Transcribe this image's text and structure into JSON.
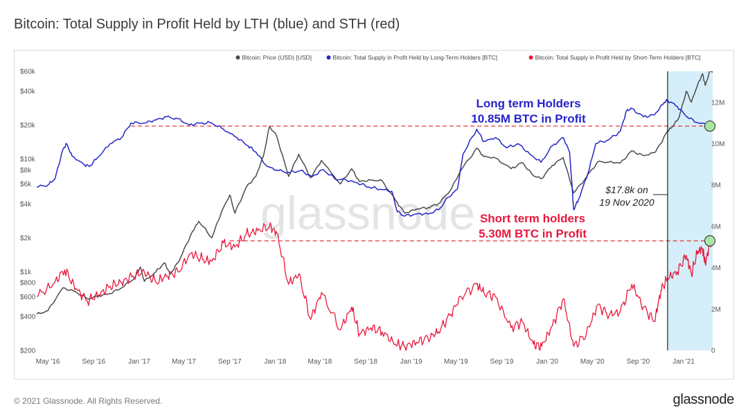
{
  "title": "Bitcoin: Total Supply in Profit Held by LTH (blue) and STH (red)",
  "footer": {
    "copyright": "© 2021 Glassnode. All Rights Reserved.",
    "brand": "glassnode"
  },
  "watermark": "glassnode",
  "colors": {
    "price": "#4a4a4a",
    "lth": "#2424c8",
    "sth": "#e8173c",
    "highlight": "#d6eef9",
    "refline": "#e02020"
  },
  "legend": [
    {
      "name": "Bitcoin: Price (USD) [USD]",
      "color": "#4a4a4a"
    },
    {
      "name": "Bitcoin: Total Supply in Profit Held by Long-Term Holders [BTC]",
      "color": "#2424c8"
    },
    {
      "name": "Bitcoin: Total Supply in Profit Held by Short-Term Holders [BTC]",
      "color": "#e8173c"
    }
  ],
  "annotations": {
    "lth_line1": "Long term Holders",
    "lth_line2": "10.85M BTC in Profit",
    "sth_line1": "Short term holders",
    "sth_line2": "5.30M BTC in Profit",
    "price_line1": "$17.8k on",
    "price_line2": "19 Nov 2020"
  },
  "chart_data": {
    "type": "line",
    "x_range": [
      "2016-04-01",
      "2021-03-20"
    ],
    "y_left": {
      "label": "",
      "scale": "log",
      "range": [
        200,
        60000
      ],
      "ticks": [
        {
          "label": "$200",
          "value": 200
        },
        {
          "label": "$400",
          "value": 400
        },
        {
          "label": "$600",
          "value": 600
        },
        {
          "label": "$800",
          "value": 800
        },
        {
          "label": "$1k",
          "value": 1000
        },
        {
          "label": "$2k",
          "value": 2000
        },
        {
          "label": "$4k",
          "value": 4000
        },
        {
          "label": "$6k",
          "value": 6000
        },
        {
          "label": "$8k",
          "value": 8000
        },
        {
          "label": "$10k",
          "value": 10000
        },
        {
          "label": "$20k",
          "value": 20000
        },
        {
          "label": "$40k",
          "value": 40000
        },
        {
          "label": "$60k",
          "value": 60000
        }
      ]
    },
    "y_right": {
      "label": "",
      "scale": "linear",
      "range": [
        0,
        13500000
      ],
      "ticks": [
        {
          "label": "0",
          "value": 0
        },
        {
          "label": "2M",
          "value": 2000000
        },
        {
          "label": "4M",
          "value": 4000000
        },
        {
          "label": "6M",
          "value": 6000000
        },
        {
          "label": "8M",
          "value": 8000000
        },
        {
          "label": "10M",
          "value": 10000000
        },
        {
          "label": "12M",
          "value": 12000000
        }
      ]
    },
    "x_ticks": [
      {
        "label": "May '16",
        "date": "2016-05-01"
      },
      {
        "label": "Sep '16",
        "date": "2016-09-01"
      },
      {
        "label": "Jan '17",
        "date": "2017-01-01"
      },
      {
        "label": "May '17",
        "date": "2017-05-01"
      },
      {
        "label": "Sep '17",
        "date": "2017-09-01"
      },
      {
        "label": "Jan '18",
        "date": "2018-01-01"
      },
      {
        "label": "May '18",
        "date": "2018-05-01"
      },
      {
        "label": "Sep '18",
        "date": "2018-09-01"
      },
      {
        "label": "Jan '19",
        "date": "2019-01-01"
      },
      {
        "label": "May '19",
        "date": "2019-05-01"
      },
      {
        "label": "Sep '19",
        "date": "2019-09-01"
      },
      {
        "label": "Jan '20",
        "date": "2020-01-01"
      },
      {
        "label": "May '20",
        "date": "2020-05-01"
      },
      {
        "label": "Sep '20",
        "date": "2020-09-01"
      },
      {
        "label": "Jan '21",
        "date": "2021-01-01"
      }
    ],
    "highlight_range": [
      "2020-11-19",
      "2021-03-20"
    ],
    "vertical_marker": {
      "date": "2020-11-19",
      "price": 17800
    },
    "reference_lines": [
      {
        "series": "lth",
        "value": 10850000
      },
      {
        "series": "sth",
        "value": 5300000
      }
    ],
    "series": [
      {
        "name": "Bitcoin: Price (USD) [USD]",
        "key": "price",
        "axis": "left",
        "points": [
          [
            "2016-04-01",
            420
          ],
          [
            "2016-05-01",
            450
          ],
          [
            "2016-06-10",
            720
          ],
          [
            "2016-07-15",
            660
          ],
          [
            "2016-08-15",
            575
          ],
          [
            "2016-09-15",
            610
          ],
          [
            "2016-10-15",
            640
          ],
          [
            "2016-11-15",
            720
          ],
          [
            "2016-12-20",
            880
          ],
          [
            "2017-01-04",
            1100
          ],
          [
            "2017-01-15",
            820
          ],
          [
            "2017-02-15",
            1000
          ],
          [
            "2017-03-10",
            1200
          ],
          [
            "2017-03-25",
            950
          ],
          [
            "2017-04-15",
            1200
          ],
          [
            "2017-05-10",
            1800
          ],
          [
            "2017-05-25",
            2300
          ],
          [
            "2017-06-10",
            2800
          ],
          [
            "2017-07-15",
            2000
          ],
          [
            "2017-08-10",
            3400
          ],
          [
            "2017-09-01",
            4800
          ],
          [
            "2017-09-15",
            3300
          ],
          [
            "2017-10-15",
            5600
          ],
          [
            "2017-11-10",
            7000
          ],
          [
            "2017-11-30",
            10500
          ],
          [
            "2017-12-17",
            19500
          ],
          [
            "2018-01-05",
            16000
          ],
          [
            "2018-02-06",
            7000
          ],
          [
            "2018-03-05",
            11000
          ],
          [
            "2018-04-06",
            6800
          ],
          [
            "2018-05-05",
            9700
          ],
          [
            "2018-06-25",
            6000
          ],
          [
            "2018-07-25",
            8200
          ],
          [
            "2018-08-15",
            6300
          ],
          [
            "2018-09-15",
            6500
          ],
          [
            "2018-10-15",
            6400
          ],
          [
            "2018-11-20",
            4300
          ],
          [
            "2018-12-15",
            3300
          ],
          [
            "2019-01-15",
            3600
          ],
          [
            "2019-02-15",
            3700
          ],
          [
            "2019-03-15",
            4000
          ],
          [
            "2019-04-15",
            5200
          ],
          [
            "2019-05-15",
            8000
          ],
          [
            "2019-06-26",
            12500
          ],
          [
            "2019-07-15",
            10500
          ],
          [
            "2019-08-15",
            10200
          ],
          [
            "2019-09-26",
            8200
          ],
          [
            "2019-10-26",
            9300
          ],
          [
            "2019-11-25",
            7100
          ],
          [
            "2019-12-17",
            6700
          ],
          [
            "2020-01-15",
            8800
          ],
          [
            "2020-02-13",
            10300
          ],
          [
            "2020-03-12",
            5000
          ],
          [
            "2020-04-15",
            6900
          ],
          [
            "2020-05-15",
            9400
          ],
          [
            "2020-06-15",
            9400
          ],
          [
            "2020-07-15",
            9200
          ],
          [
            "2020-08-15",
            11800
          ],
          [
            "2020-09-15",
            10700
          ],
          [
            "2020-10-15",
            11400
          ],
          [
            "2020-11-01",
            13800
          ],
          [
            "2020-11-19",
            17800
          ],
          [
            "2020-12-01",
            19200
          ],
          [
            "2020-12-20",
            23500
          ],
          [
            "2021-01-08",
            40000
          ],
          [
            "2021-01-22",
            32000
          ],
          [
            "2021-02-08",
            46000
          ],
          [
            "2021-02-21",
            57000
          ],
          [
            "2021-02-28",
            45000
          ],
          [
            "2021-03-13",
            61000
          ],
          [
            "2021-03-20",
            58500
          ]
        ]
      },
      {
        "name": "Bitcoin: Total Supply in Profit Held by Long-Term Holders [BTC]",
        "key": "lth",
        "axis": "right",
        "points": [
          [
            "2016-04-01",
            7900000
          ],
          [
            "2016-05-01",
            8000000
          ],
          [
            "2016-05-20",
            8300000
          ],
          [
            "2016-06-10",
            9700000
          ],
          [
            "2016-06-20",
            10000000
          ],
          [
            "2016-07-05",
            9400000
          ],
          [
            "2016-08-05",
            9000000
          ],
          [
            "2016-08-20",
            8900000
          ],
          [
            "2016-09-10",
            9300000
          ],
          [
            "2016-10-15",
            10000000
          ],
          [
            "2016-11-15",
            10300000
          ],
          [
            "2016-12-10",
            11000000
          ],
          [
            "2017-01-15",
            11000000
          ],
          [
            "2017-02-15",
            11150000
          ],
          [
            "2017-03-15",
            11300000
          ],
          [
            "2017-04-15",
            11200000
          ],
          [
            "2017-05-15",
            10900000
          ],
          [
            "2017-06-15",
            11000000
          ],
          [
            "2017-07-15",
            11000000
          ],
          [
            "2017-08-15",
            10700000
          ],
          [
            "2017-09-20",
            10300000
          ],
          [
            "2017-10-20",
            9900000
          ],
          [
            "2017-11-10",
            9600000
          ],
          [
            "2017-12-10",
            8900000
          ],
          [
            "2018-01-10",
            8700000
          ],
          [
            "2018-02-10",
            8600000
          ],
          [
            "2018-03-10",
            8700000
          ],
          [
            "2018-04-10",
            8400000
          ],
          [
            "2018-05-10",
            8750000
          ],
          [
            "2018-06-10",
            8300000
          ],
          [
            "2018-07-10",
            8250000
          ],
          [
            "2018-08-10",
            8100000
          ],
          [
            "2018-09-10",
            7900000
          ],
          [
            "2018-10-10",
            7800000
          ],
          [
            "2018-11-10",
            7700000
          ],
          [
            "2018-11-25",
            6700000
          ],
          [
            "2018-12-15",
            6500000
          ],
          [
            "2019-01-15",
            6600000
          ],
          [
            "2019-02-15",
            6600000
          ],
          [
            "2019-03-15",
            6800000
          ],
          [
            "2019-04-10",
            7400000
          ],
          [
            "2019-05-05",
            7800000
          ],
          [
            "2019-05-20",
            9500000
          ],
          [
            "2019-06-26",
            10700000
          ],
          [
            "2019-07-15",
            10100000
          ],
          [
            "2019-08-15",
            10300000
          ],
          [
            "2019-09-15",
            9800000
          ],
          [
            "2019-10-15",
            10000000
          ],
          [
            "2019-11-15",
            9500000
          ],
          [
            "2019-12-15",
            9100000
          ],
          [
            "2020-01-15",
            9900000
          ],
          [
            "2020-02-13",
            10300000
          ],
          [
            "2020-03-01",
            9600000
          ],
          [
            "2020-03-12",
            6800000
          ],
          [
            "2020-03-25",
            7300000
          ],
          [
            "2020-04-20",
            8600000
          ],
          [
            "2020-05-10",
            10000000
          ],
          [
            "2020-06-15",
            10200000
          ],
          [
            "2020-07-15",
            10600000
          ],
          [
            "2020-08-01",
            11600000
          ],
          [
            "2020-08-15",
            11700000
          ],
          [
            "2020-09-15",
            11300000
          ],
          [
            "2020-10-15",
            11400000
          ],
          [
            "2020-11-10",
            12000000
          ],
          [
            "2020-11-19",
            12100000
          ],
          [
            "2020-12-15",
            11800000
          ],
          [
            "2021-01-10",
            11300000
          ],
          [
            "2021-02-10",
            11000000
          ],
          [
            "2021-03-20",
            10850000
          ]
        ]
      },
      {
        "name": "Bitcoin: Total Supply in Profit Held by Short-Term Holders [BTC]",
        "key": "sth",
        "axis": "right",
        "points": [
          [
            "2016-04-01",
            2600000
          ],
          [
            "2016-05-15",
            3200000
          ],
          [
            "2016-06-15",
            3900000
          ],
          [
            "2016-07-15",
            3000000
          ],
          [
            "2016-08-15",
            2400000
          ],
          [
            "2016-09-15",
            2700000
          ],
          [
            "2016-10-15",
            3100000
          ],
          [
            "2016-11-15",
            3300000
          ],
          [
            "2016-12-15",
            3600000
          ],
          [
            "2017-01-15",
            3800000
          ],
          [
            "2017-02-15",
            3300000
          ],
          [
            "2017-03-15",
            3600000
          ],
          [
            "2017-04-15",
            3800000
          ],
          [
            "2017-05-20",
            4700000
          ],
          [
            "2017-06-20",
            4400000
          ],
          [
            "2017-07-15",
            4300000
          ],
          [
            "2017-08-15",
            5200000
          ],
          [
            "2017-09-15",
            5000000
          ],
          [
            "2017-10-15",
            5600000
          ],
          [
            "2017-11-15",
            5800000
          ],
          [
            "2017-12-17",
            6000000
          ],
          [
            "2018-01-05",
            5700000
          ],
          [
            "2018-02-06",
            3200000
          ],
          [
            "2018-03-05",
            3700000
          ],
          [
            "2018-04-06",
            1500000
          ],
          [
            "2018-05-05",
            2800000
          ],
          [
            "2018-06-25",
            1000000
          ],
          [
            "2018-07-25",
            2100000
          ],
          [
            "2018-08-15",
            800000
          ],
          [
            "2018-09-15",
            1100000
          ],
          [
            "2018-10-15",
            900000
          ],
          [
            "2018-11-20",
            300000
          ],
          [
            "2018-12-15",
            200000
          ],
          [
            "2019-01-15",
            400000
          ],
          [
            "2019-02-15",
            600000
          ],
          [
            "2019-03-15",
            900000
          ],
          [
            "2019-04-15",
            1700000
          ],
          [
            "2019-05-15",
            2600000
          ],
          [
            "2019-06-26",
            3200000
          ],
          [
            "2019-07-15",
            2800000
          ],
          [
            "2019-08-15",
            2600000
          ],
          [
            "2019-09-26",
            1100000
          ],
          [
            "2019-10-26",
            1400000
          ],
          [
            "2019-11-25",
            300000
          ],
          [
            "2019-12-17",
            200000
          ],
          [
            "2020-01-15",
            1200000
          ],
          [
            "2020-02-13",
            2500000
          ],
          [
            "2020-03-12",
            200000
          ],
          [
            "2020-04-15",
            800000
          ],
          [
            "2020-05-15",
            2200000
          ],
          [
            "2020-06-15",
            1700000
          ],
          [
            "2020-07-15",
            1900000
          ],
          [
            "2020-08-15",
            3200000
          ],
          [
            "2020-09-15",
            2100000
          ],
          [
            "2020-10-15",
            1400000
          ],
          [
            "2020-11-01",
            2900000
          ],
          [
            "2020-11-19",
            3500000
          ],
          [
            "2020-12-15",
            3800000
          ],
          [
            "2021-01-08",
            4600000
          ],
          [
            "2021-01-22",
            3700000
          ],
          [
            "2021-02-08",
            4800000
          ],
          [
            "2021-02-21",
            4900000
          ],
          [
            "2021-02-28",
            4200000
          ],
          [
            "2021-03-13",
            5200000
          ],
          [
            "2021-03-20",
            5300000
          ]
        ]
      }
    ]
  }
}
